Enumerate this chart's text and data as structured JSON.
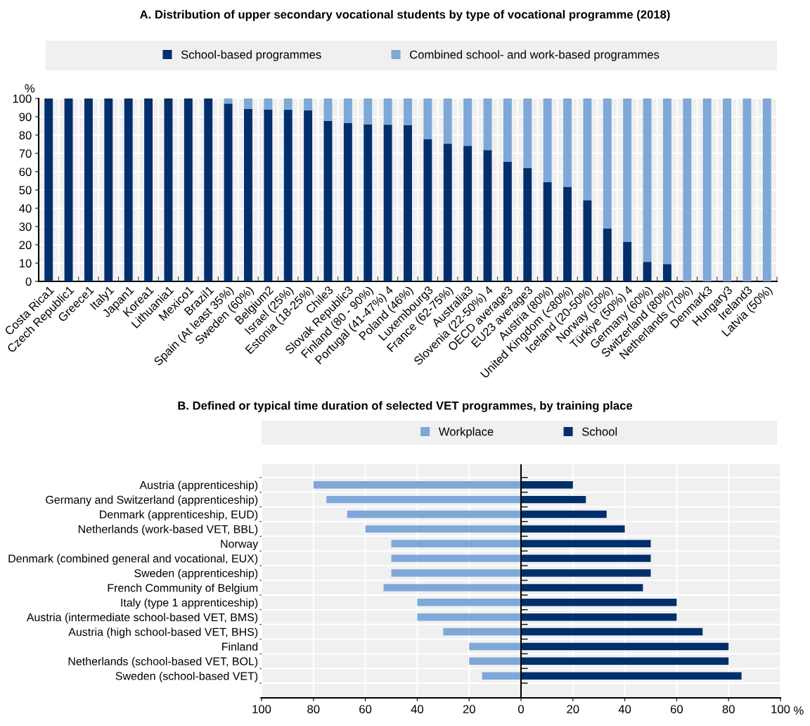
{
  "chart_data": [
    {
      "type": "bar",
      "title": "A. Distribution of upper secondary vocational students by type of vocational programme (2018)",
      "ylabel": "%",
      "stacked": true,
      "legend": "top",
      "grid": "y",
      "categories": [
        "Costa Rica1",
        "Czech Republic1",
        "Greece1",
        "Italy1",
        "Japan1",
        "Korea1",
        "Lithuania1",
        "Mexico1",
        "Brazil1",
        "Spain (At least 35%)",
        "Sweden (60%)",
        "Belgium2",
        "Israel (25%)",
        "Estonia (18-25%)",
        "Chile3",
        "Slovak Republic3",
        "Finland (80 - 90%)",
        "Portugal (41-47%) 4",
        "Poland (46%)",
        "Luxembourg3",
        "France (62-75%)",
        "Australia3",
        "Slovenia (22-50%) 4",
        "OECD average3",
        "EU23 average3",
        "Austria (80%)",
        "United Kingdom (<80%)",
        "Iceland (20-50%)",
        "Norway (50%)",
        "Türkiye (50%) 4",
        "Germany (60%)",
        "Switzerland (80%)",
        "Netherlands (70%)",
        "Denmark3",
        "Hungary3",
        "Ireland3",
        "Latvia (50%)"
      ],
      "series": [
        {
          "name": "School-based programmes",
          "color": "#002f6c",
          "values": [
            100,
            100,
            100,
            100,
            100,
            100,
            100,
            100,
            100,
            97.2,
            94.3,
            94.0,
            93.8,
            93.5,
            87.8,
            86.6,
            85.8,
            85.7,
            85.4,
            77.7,
            75.3,
            74.1,
            71.8,
            65.5,
            62.0,
            54.3,
            51.7,
            44.4,
            28.8,
            21.7,
            10.7,
            9.5,
            0,
            0,
            0,
            0,
            0
          ]
        },
        {
          "name": "Combined school- and work-based programmes",
          "color": "#7fa8d9",
          "values": [
            0,
            0,
            0,
            0,
            0,
            0,
            0,
            0,
            0,
            2.8,
            5.7,
            6.0,
            6.2,
            6.5,
            12.2,
            13.4,
            14.2,
            14.3,
            14.6,
            22.3,
            24.7,
            25.9,
            28.2,
            34.5,
            38.0,
            45.7,
            48.3,
            55.6,
            71.2,
            78.3,
            89.3,
            90.5,
            100,
            100,
            100,
            100,
            100
          ]
        }
      ],
      "ylim": [
        0,
        100
      ],
      "yticks": [
        0,
        10,
        20,
        30,
        40,
        50,
        60,
        70,
        80,
        90,
        100
      ]
    },
    {
      "type": "bar",
      "title": "B. Defined or typical time duration of selected VET programmes, by training place",
      "xlabel": "%",
      "orientation": "horizontal",
      "stacked": true,
      "legend": "top",
      "grid": true,
      "categories": [
        "Austria (apprenticeship)",
        "Germany and Switzerland (apprenticeship)",
        "Denmark (apprenticeship, EUD)",
        "Netherlands (work-based VET, BBL)",
        "Norway",
        "Denmark (combined general and vocational, EUX)",
        "Sweden (apprenticeship)",
        "French Community of Belgium",
        "Italy (type 1 apprenticeship)",
        "Austria (intermediate school-based VET, BMS)",
        "Austria (high school-based VET, BHS)",
        "Finland",
        "Netherlands (school-based VET, BOL)",
        "Sweden (school-based VET)"
      ],
      "series": [
        {
          "name": "Workplace",
          "color": "#7fa8d9",
          "values": [
            -80,
            -75,
            -67,
            -60,
            -50,
            -50,
            -50,
            -53,
            -40,
            -40,
            -30,
            -20,
            -20,
            -15
          ]
        },
        {
          "name": "School",
          "color": "#002f6c",
          "values": [
            20,
            25,
            33,
            40,
            50,
            50,
            50,
            47,
            60,
            60,
            70,
            80,
            80,
            85
          ]
        }
      ],
      "xlim": [
        -100,
        100
      ],
      "xticks": [
        {
          "value": -100,
          "label": "100"
        },
        {
          "value": -80,
          "label": "80"
        },
        {
          "value": -60,
          "label": "60"
        },
        {
          "value": -40,
          "label": "40"
        },
        {
          "value": -20,
          "label": "20"
        },
        0,
        20,
        40,
        60,
        80,
        100
      ]
    }
  ]
}
